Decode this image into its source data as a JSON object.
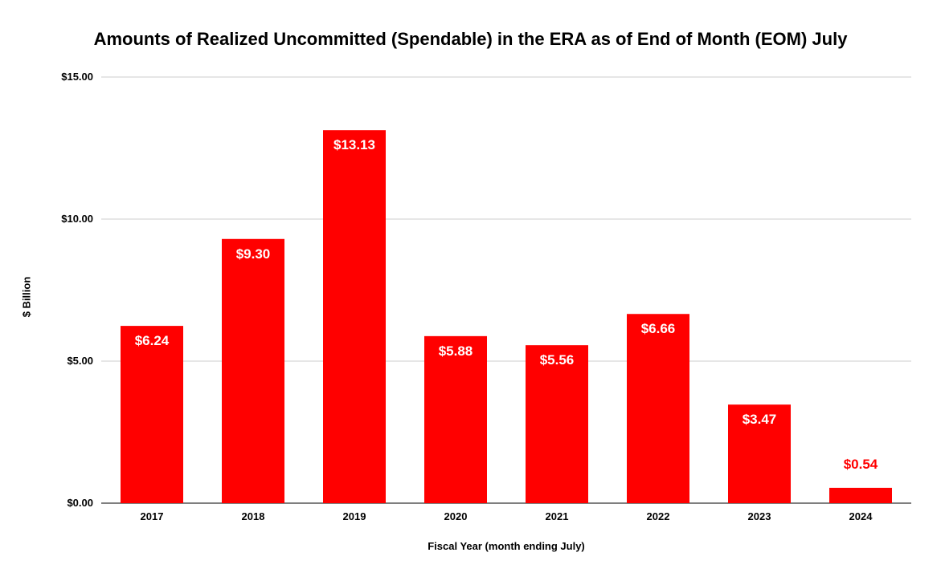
{
  "chart_data": {
    "type": "bar",
    "title": "Amounts of Realized Uncommitted (Spendable) in the ERA as of End of Month (EOM) July",
    "xlabel": "Fiscal Year (month ending July)",
    "ylabel": "$ Billion",
    "categories": [
      "2017",
      "2018",
      "2019",
      "2020",
      "2021",
      "2022",
      "2023",
      "2024"
    ],
    "values": [
      6.24,
      9.3,
      13.13,
      5.88,
      5.56,
      6.66,
      3.47,
      0.54
    ],
    "data_labels": [
      "$6.24",
      "$9.30",
      "$13.13",
      "$5.88",
      "$5.56",
      "$6.66",
      "$3.47",
      "$0.54"
    ],
    "ylim": [
      0,
      15
    ],
    "yticks": [
      0,
      5,
      10,
      15
    ],
    "ytick_labels": [
      "$0.00",
      "$5.00",
      "$10.00",
      "$15.00"
    ],
    "grid": true,
    "legend": "none",
    "colors": {
      "bar": "#ff0000",
      "label_inside": "#ffffff",
      "label_outside": "#ff0000",
      "grid": "#cccccc",
      "axis": "#333333"
    }
  }
}
